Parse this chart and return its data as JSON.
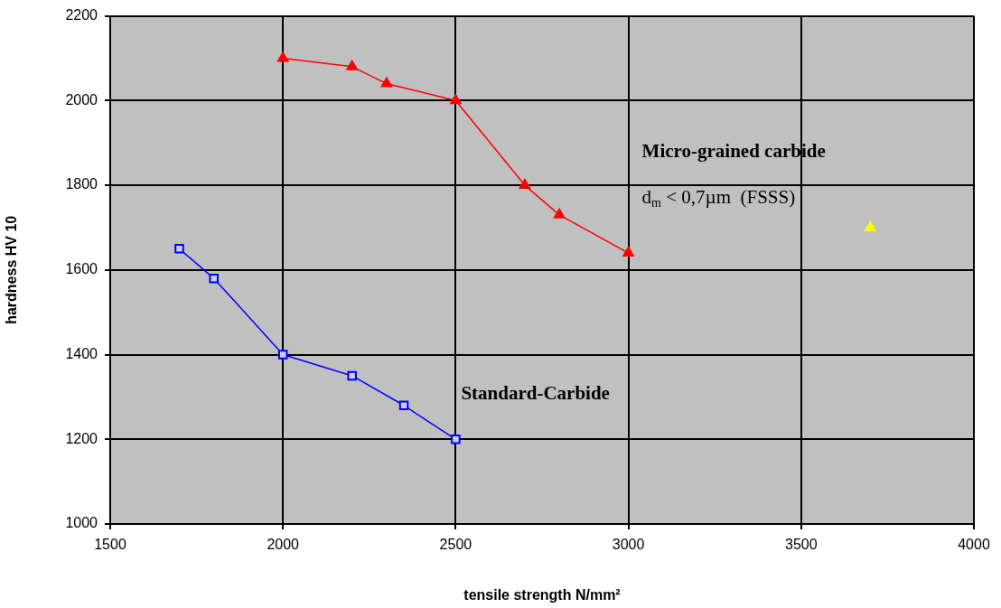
{
  "chart_data": {
    "type": "line",
    "xlabel": "tensile strength N/mm²",
    "ylabel": "hardness HV 10",
    "xlim": [
      1500,
      4000
    ],
    "xticks": [
      1500,
      2000,
      2500,
      3000,
      3500,
      4000
    ],
    "ylim": [
      1000,
      2200
    ],
    "yticks": [
      1000,
      1200,
      1400,
      1600,
      1800,
      2000,
      2200
    ],
    "grid": true,
    "legend": false,
    "line_style": "solid",
    "annotations": [
      "d$_{m}$ < 0,7µm  (FSSS)"
    ],
    "series": [
      {
        "name": "Micro-grained carbide",
        "color": "#ff0000",
        "marker": "triangle",
        "x": [
          2000,
          2200,
          2300,
          2500,
          2700,
          2800,
          3000
        ],
        "values": [
          2100,
          2080,
          2040,
          2000,
          1800,
          1730,
          1640
        ]
      },
      {
        "name": "Standard-Carbide",
        "color": "#0000ff",
        "marker": "square",
        "x": [
          1700,
          1800,
          2000,
          2200,
          2350,
          2500
        ],
        "values": [
          1650,
          1580,
          1400,
          1350,
          1280,
          1200
        ]
      },
      {
        "type": "scatter",
        "color": "#ffff00",
        "marker": "triangle",
        "x": [
          3700
        ],
        "values": [
          1700
        ]
      }
    ]
  }
}
